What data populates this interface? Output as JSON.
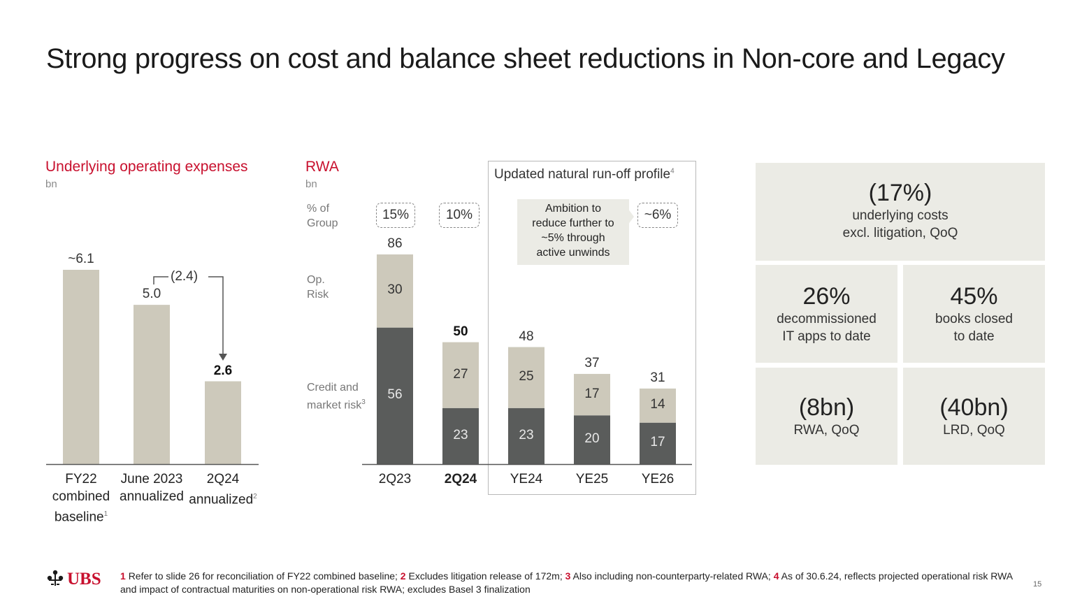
{
  "page": {
    "title": "Strong progress on cost and balance sheet reductions in Non-core and Legacy",
    "page_number": "15",
    "logo_text": "UBS"
  },
  "opex": {
    "title": "Underlying operating expenses",
    "unit": "bn",
    "delta_label": "(2.4)"
  },
  "rwa": {
    "title": "RWA",
    "unit": "bn",
    "row_labels": {
      "pct_group": [
        "% of",
        "Group"
      ],
      "op_risk": [
        "Op.",
        "Risk"
      ],
      "credit": [
        "Credit and",
        "market risk"
      ],
      "credit_sup": "3"
    },
    "pct_badges": [
      "15%",
      "10%",
      "~6%"
    ],
    "runoff_box_title": "Updated natural run-off profile",
    "runoff_box_sup": "4",
    "callout": [
      "Ambition to",
      "reduce further to",
      "~5% through",
      "active unwinds"
    ]
  },
  "chart_data": [
    {
      "type": "bar",
      "title": "Underlying operating expenses",
      "ylabel": "bn",
      "categories": [
        "FY22 combined baseline",
        "June 2023 annualized",
        "2Q24 annualized"
      ],
      "category_lines": [
        [
          "FY22",
          "combined",
          "baseline"
        ],
        [
          "June 2023",
          "annualized",
          ""
        ],
        [
          "2Q24",
          "annualized",
          ""
        ]
      ],
      "category_sups": [
        "1",
        "",
        "2"
      ],
      "values": [
        6.1,
        5.0,
        2.6
      ],
      "value_labels": [
        "~6.1",
        "5.0",
        "2.6"
      ],
      "highlight_index": 2,
      "ylim": [
        0,
        7
      ],
      "bar_color": "#cdc9bb"
    },
    {
      "type": "bar",
      "stacked": true,
      "title": "RWA",
      "ylabel": "bn",
      "categories": [
        "2Q23",
        "2Q24",
        "YE24",
        "YE25",
        "YE26"
      ],
      "series": [
        {
          "name": "Credit and market risk",
          "values": [
            56,
            23,
            23,
            20,
            17
          ],
          "color": "#5a5c5b"
        },
        {
          "name": "Op. Risk",
          "values": [
            30,
            27,
            25,
            17,
            14
          ],
          "color": "#cdc9bb"
        }
      ],
      "totals": [
        86,
        50,
        48,
        37,
        31
      ],
      "highlight_index": 1,
      "ylim": [
        0,
        100
      ]
    }
  ],
  "kpis": [
    {
      "value": "(17%)",
      "lines": [
        "underlying costs",
        "excl. litigation, QoQ"
      ]
    },
    {
      "value": "26%",
      "lines": [
        "decommissioned",
        "IT apps to date"
      ]
    },
    {
      "value": "45%",
      "lines": [
        "books closed",
        "to date"
      ]
    },
    {
      "value": "(8bn)",
      "lines": [
        "RWA, QoQ"
      ]
    },
    {
      "value": "(40bn)",
      "lines": [
        "LRD, QoQ"
      ]
    }
  ],
  "footnote": {
    "items": [
      {
        "num": "1",
        "text": "Refer to slide 26 for reconciliation of FY22 combined baseline;"
      },
      {
        "num": "2",
        "text": "Excludes litigation release of 172m;"
      },
      {
        "num": "3",
        "text": "Also including non-counterparty-related RWA;"
      },
      {
        "num": "4",
        "text": "As of 30.6.24, reflects projected operational risk RWA and impact of contractual maturities on non-operational risk RWA; excludes Basel 3 finalization"
      }
    ]
  },
  "colors": {
    "accent": "#c8102e",
    "bar_light": "#cdc9bb",
    "bar_dark": "#5a5c5b",
    "panel": "#ebebe5"
  }
}
